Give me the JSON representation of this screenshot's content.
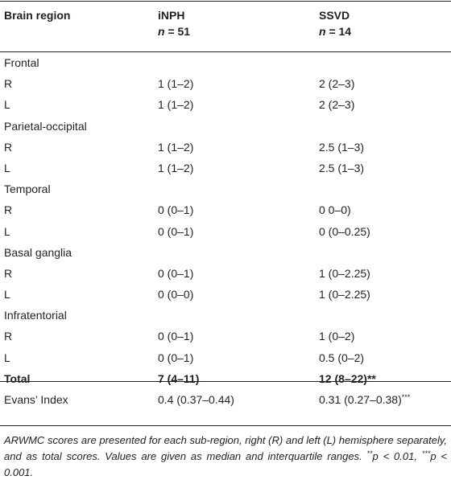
{
  "header": {
    "col1": "Brain region",
    "col2": "iNPH",
    "col2_n_label": "n",
    "col2_n_value": "= 51",
    "col3": "SSVD",
    "col3_n_label": "n",
    "col3_n_value": "= 14"
  },
  "rows": [
    {
      "label": "Frontal",
      "inph": "",
      "ssvd": "",
      "ssvd_sup": ""
    },
    {
      "label": "R",
      "inph": "1 (1–2)",
      "ssvd": "2 (2–3)",
      "ssvd_sup": ""
    },
    {
      "label": "L",
      "inph": "1 (1–2)",
      "ssvd": "2 (2–3)",
      "ssvd_sup": ""
    },
    {
      "label": "Parietal-occipital",
      "inph": "",
      "ssvd": "",
      "ssvd_sup": ""
    },
    {
      "label": "R",
      "inph": "1 (1–2)",
      "ssvd": "2.5 (1–3)",
      "ssvd_sup": ""
    },
    {
      "label": "L",
      "inph": "1 (1–2)",
      "ssvd": "2.5 (1–3)",
      "ssvd_sup": ""
    },
    {
      "label": "Temporal",
      "inph": "",
      "ssvd": "",
      "ssvd_sup": ""
    },
    {
      "label": "R",
      "inph": "0 (0–1)",
      "ssvd": "0 0–0)",
      "ssvd_sup": ""
    },
    {
      "label": "L",
      "inph": "0 (0–1)",
      "ssvd": "0 (0–0.25)",
      "ssvd_sup": ""
    },
    {
      "label": "Basal ganglia",
      "inph": "",
      "ssvd": "",
      "ssvd_sup": ""
    },
    {
      "label": "R",
      "inph": "0 (0–1)",
      "ssvd": "1 (0–2.25)",
      "ssvd_sup": ""
    },
    {
      "label": "L",
      "inph": "0 (0–0)",
      "ssvd": "1 (0–2.25)",
      "ssvd_sup": ""
    },
    {
      "label": "Infratentorial",
      "inph": "",
      "ssvd": "",
      "ssvd_sup": ""
    },
    {
      "label": "R",
      "inph": "0 (0–1)",
      "ssvd": "1 (0–2)",
      "ssvd_sup": ""
    },
    {
      "label": "L",
      "inph": "0 (0–1)",
      "ssvd": "0.5 (0–2)",
      "ssvd_sup": ""
    },
    {
      "label": "Total",
      "inph": "7 (4–11)",
      "ssvd": "12 (8–22)",
      "ssvd_sup": "**",
      "bold": true
    },
    {
      "label": "Evans’ Index",
      "inph": "0.4 (0.37–0.44)",
      "ssvd": "0.31 (0.27–0.38)",
      "ssvd_sup": "***"
    }
  ],
  "footnote": {
    "text": "ARWMC scores are presented for each sub-region, right (R) and left (L) hemisphere separately, and as total scores. Values are given as median and interquartile ranges.",
    "sig1_stars": "**",
    "sig1_text": "p < 0.01, ",
    "sig2_stars": "***",
    "sig2_text": "p < 0.001."
  }
}
